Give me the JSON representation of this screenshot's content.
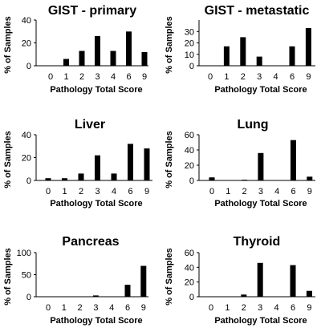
{
  "chart_data": [
    {
      "type": "bar",
      "title": "GIST - primary",
      "xlabel": "Pathology Total Score",
      "ylabel": "% of Samples",
      "categories": [
        "0",
        "1",
        "2",
        "3",
        "4",
        "6",
        "9"
      ],
      "values": [
        0,
        6,
        13,
        26,
        13,
        30,
        12
      ],
      "yticks": [
        0,
        20,
        40
      ],
      "ylim": [
        0,
        40
      ],
      "grid": false,
      "bar_color": "#000000"
    },
    {
      "type": "bar",
      "title": "GIST - metastatic",
      "xlabel": "Pathology Total Score",
      "ylabel": "% of Samples",
      "categories": [
        "0",
        "1",
        "2",
        "3",
        "4",
        "6",
        "9"
      ],
      "values": [
        0,
        17,
        25,
        8,
        0,
        17,
        33
      ],
      "yticks": [
        0,
        10,
        20,
        30
      ],
      "ylim": [
        0,
        40
      ],
      "grid": false,
      "bar_color": "#000000"
    },
    {
      "type": "bar",
      "title": "Liver",
      "xlabel": "Pathology Total Score",
      "ylabel": "% of Samples",
      "categories": [
        "0",
        "1",
        "2",
        "3",
        "4",
        "6",
        "9"
      ],
      "values": [
        2,
        2,
        6,
        22,
        6,
        32,
        28
      ],
      "yticks": [
        0,
        20,
        40
      ],
      "ylim": [
        0,
        40
      ],
      "grid": false,
      "bar_color": "#000000"
    },
    {
      "type": "bar",
      "title": "Lung",
      "xlabel": "Pathology Total Score",
      "ylabel": "% of Samples",
      "categories": [
        "0",
        "1",
        "2",
        "3",
        "4",
        "6",
        "9"
      ],
      "values": [
        4,
        0,
        1,
        36,
        0,
        53,
        5
      ],
      "yticks": [
        0,
        20,
        40,
        60
      ],
      "ylim": [
        0,
        60
      ],
      "grid": false,
      "bar_color": "#000000"
    },
    {
      "type": "bar",
      "title": "Pancreas",
      "xlabel": "Pathology Total Score",
      "ylabel": "% of Samples",
      "categories": [
        "0",
        "1",
        "2",
        "3",
        "4",
        "6",
        "9"
      ],
      "values": [
        0,
        0,
        0,
        3,
        0,
        27,
        70
      ],
      "yticks": [
        0,
        50,
        100
      ],
      "ylim": [
        0,
        100
      ],
      "grid": false,
      "bar_color": "#000000"
    },
    {
      "type": "bar",
      "title": "Thyroid",
      "xlabel": "Pathology Total Score",
      "ylabel": "% of Samples",
      "categories": [
        "0",
        "1",
        "2",
        "3",
        "4",
        "6",
        "9"
      ],
      "values": [
        0,
        0,
        3,
        46,
        0,
        43,
        8
      ],
      "yticks": [
        0,
        20,
        40,
        60
      ],
      "ylim": [
        0,
        60
      ],
      "grid": false,
      "bar_color": "#000000"
    }
  ]
}
